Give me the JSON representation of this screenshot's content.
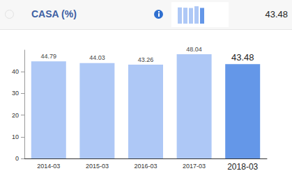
{
  "header": {
    "title": "CASA (%)",
    "value": "43.48"
  },
  "chart_data": {
    "type": "bar",
    "categories": [
      "2014-03",
      "2015-03",
      "2016-03",
      "2017-03",
      "2018-03"
    ],
    "values": [
      44.79,
      44.03,
      43.26,
      48.04,
      43.48
    ],
    "colors": [
      "#aec8f6",
      "#aec8f6",
      "#aec8f6",
      "#aec8f6",
      "#6497e8"
    ],
    "ylim": [
      0,
      50
    ],
    "yticks": [
      0,
      10,
      20,
      30,
      40
    ],
    "grid": false,
    "data_labels": true
  }
}
